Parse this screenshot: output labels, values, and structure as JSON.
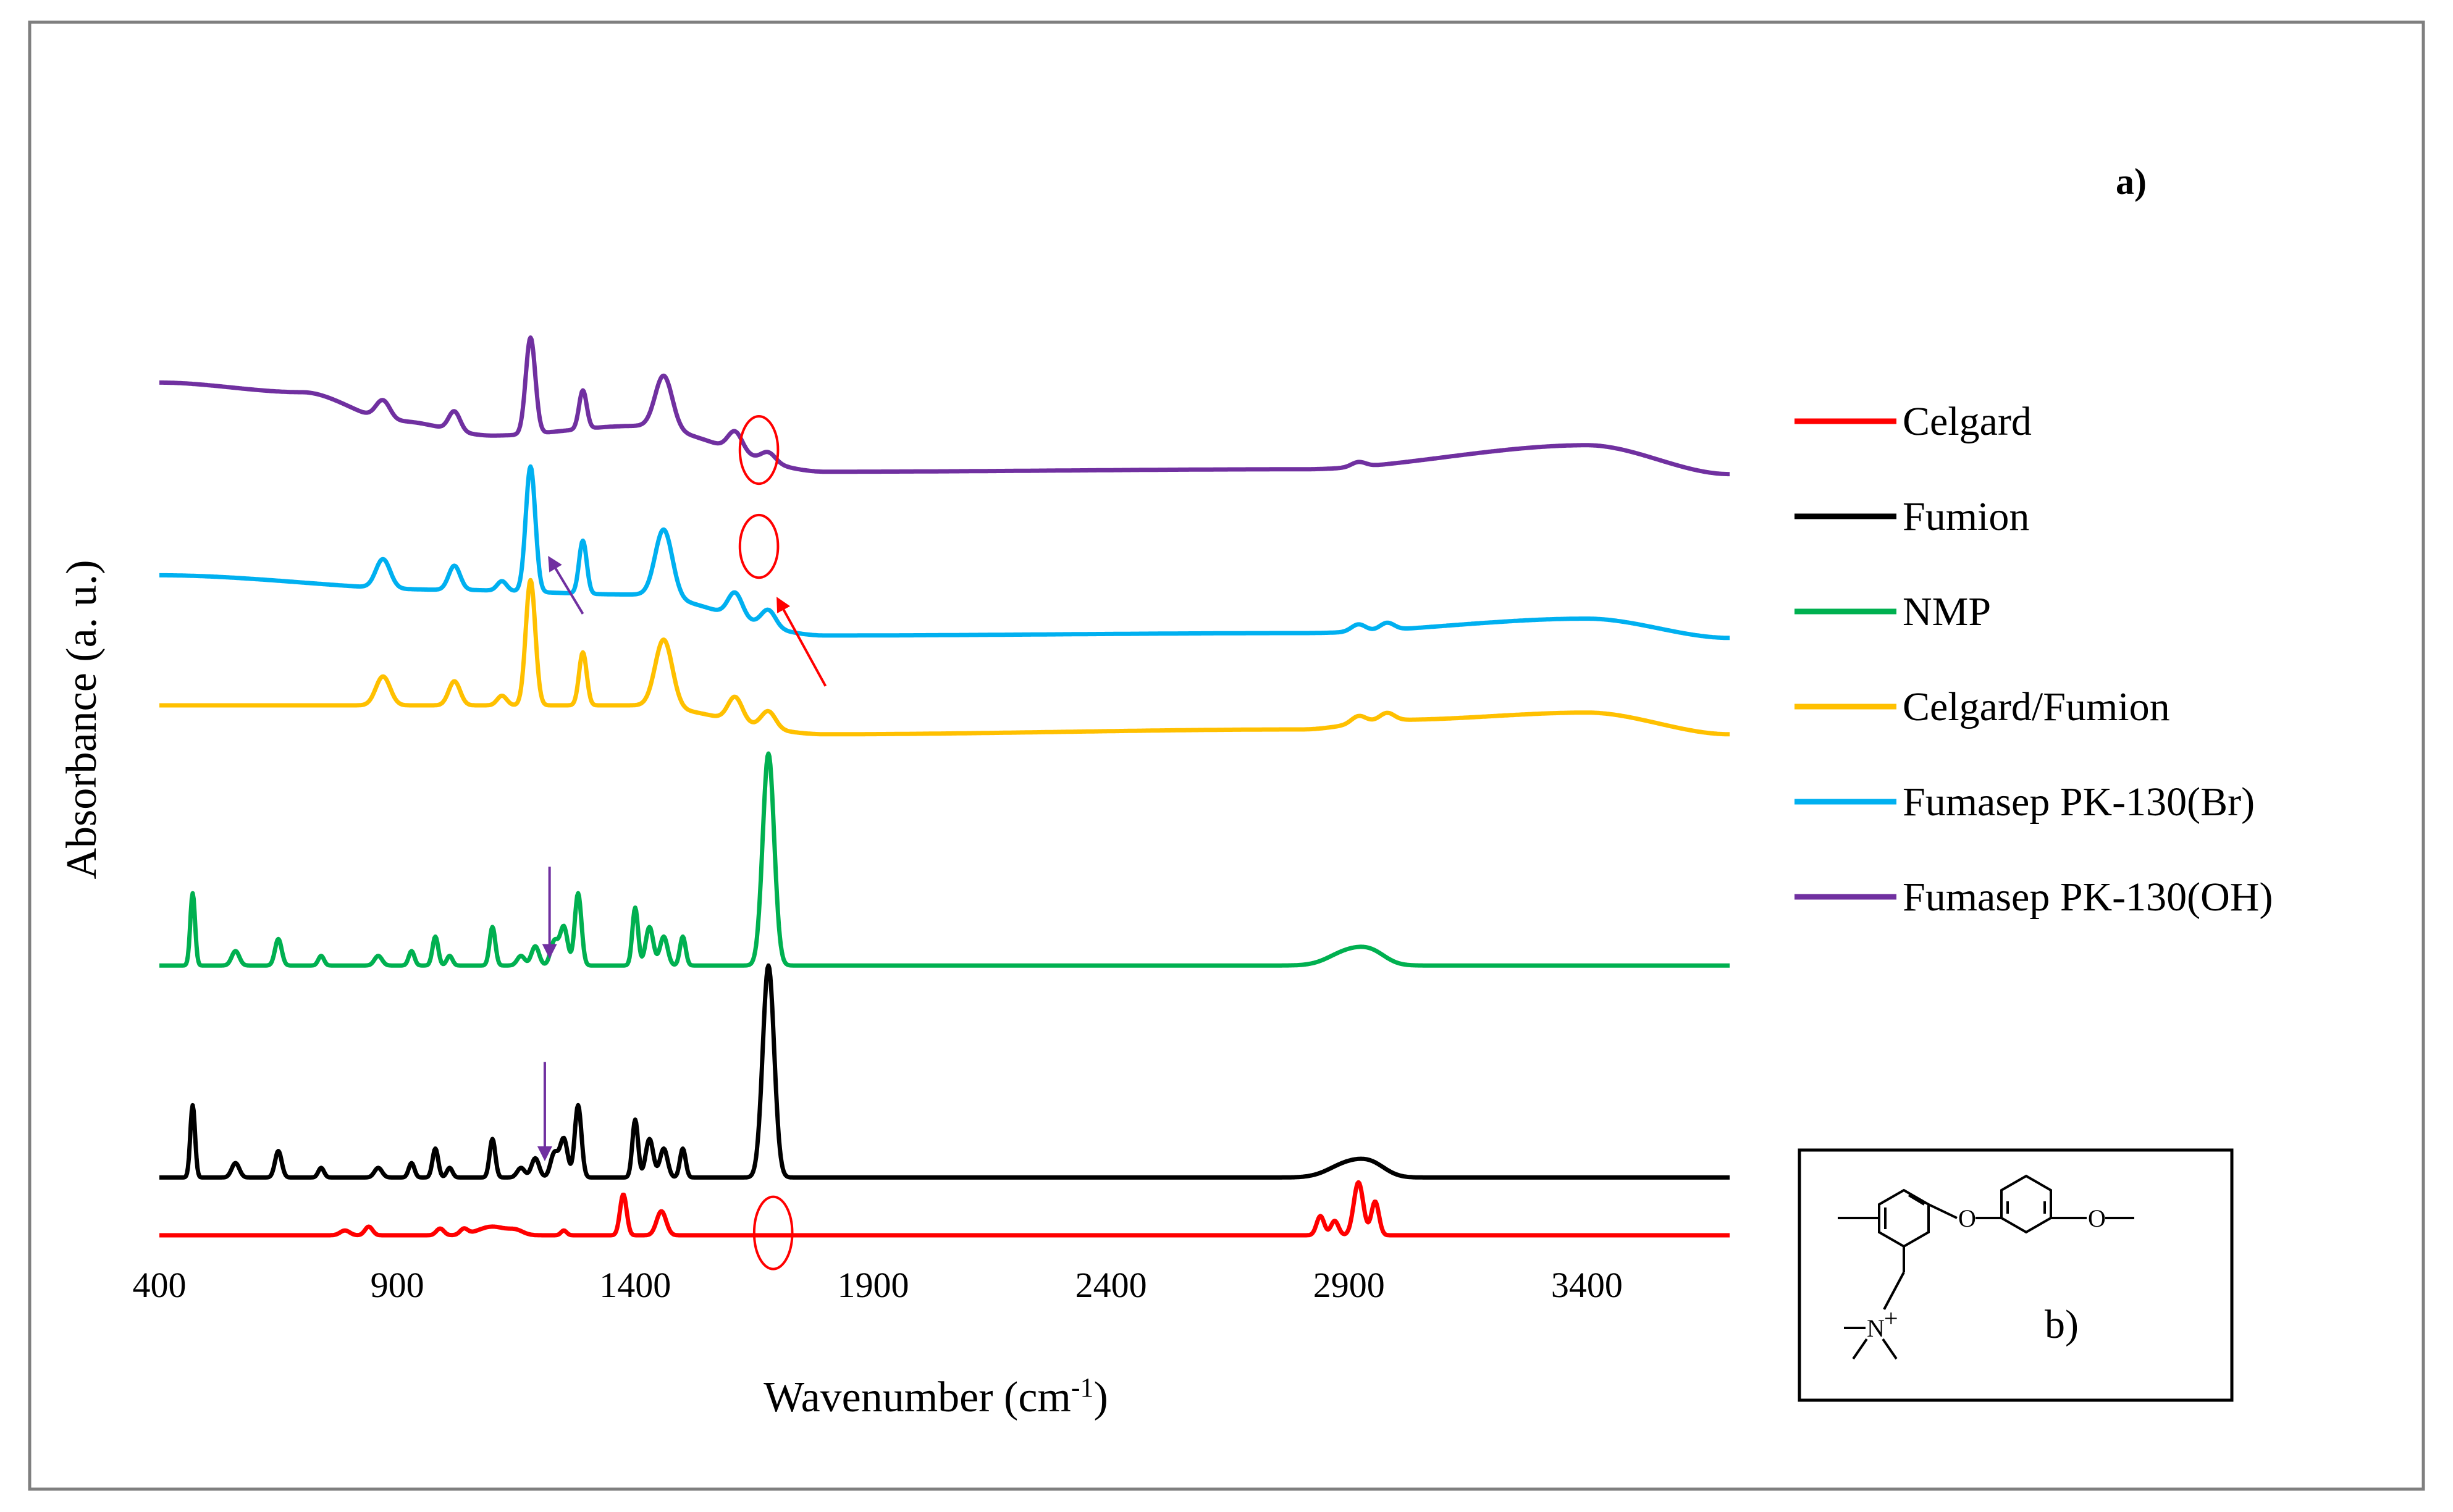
{
  "chart_data": {
    "type": "line",
    "panel_label": "a)",
    "xlabel": "Wavenumber (cm",
    "xlabel_sup": "-1",
    "xlabel_end": ")",
    "ylabel": "Absorbance (a. u.)",
    "xlim": [
      400,
      3700
    ],
    "x_ticks": [
      400,
      900,
      1400,
      1900,
      2400,
      2900,
      3400
    ],
    "legend_position": "right",
    "series": [
      {
        "name": "Celgard",
        "color": "#ff0000",
        "offset": 0.0,
        "baseline": [
          [
            400,
            0
          ],
          [
            3700,
            0
          ]
        ],
        "peaks": [
          [
            790,
            0.01,
            10
          ],
          [
            840,
            0.018,
            8
          ],
          [
            990,
            0.014,
            8
          ],
          [
            1040,
            0.012,
            8
          ],
          [
            1100,
            0.018,
            30
          ],
          [
            1150,
            0.008,
            15
          ],
          [
            1250,
            0.01,
            6
          ],
          [
            1375,
            0.085,
            7
          ],
          [
            1455,
            0.05,
            10
          ],
          [
            2840,
            0.04,
            8
          ],
          [
            2870,
            0.03,
            8
          ],
          [
            2920,
            0.11,
            10
          ],
          [
            2955,
            0.07,
            8
          ]
        ]
      },
      {
        "name": "Fumion",
        "color": "#000000",
        "offset": 0.12,
        "baseline": [
          [
            400,
            0
          ],
          [
            3700,
            0
          ]
        ],
        "peaks": [
          [
            470,
            0.15,
            5
          ],
          [
            560,
            0.03,
            8
          ],
          [
            650,
            0.055,
            7
          ],
          [
            740,
            0.02,
            6
          ],
          [
            860,
            0.02,
            8
          ],
          [
            930,
            0.03,
            6
          ],
          [
            980,
            0.06,
            6
          ],
          [
            1010,
            0.02,
            6
          ],
          [
            1100,
            0.08,
            6
          ],
          [
            1160,
            0.02,
            8
          ],
          [
            1190,
            0.04,
            8
          ],
          [
            1230,
            0.05,
            8
          ],
          [
            1250,
            0.08,
            8
          ],
          [
            1280,
            0.15,
            7
          ],
          [
            1400,
            0.12,
            6
          ],
          [
            1430,
            0.08,
            8
          ],
          [
            1460,
            0.06,
            8
          ],
          [
            1500,
            0.06,
            6
          ],
          [
            1680,
            0.44,
            12
          ],
          [
            2900,
            0.03,
            40
          ],
          [
            2950,
            0.02,
            30
          ]
        ]
      },
      {
        "name": "NMP",
        "color": "#00b050",
        "offset": 0.56,
        "baseline": [
          [
            400,
            0
          ],
          [
            3700,
            0
          ]
        ],
        "peaks": [
          [
            470,
            0.15,
            5
          ],
          [
            560,
            0.03,
            8
          ],
          [
            650,
            0.055,
            7
          ],
          [
            740,
            0.02,
            6
          ],
          [
            860,
            0.02,
            8
          ],
          [
            930,
            0.03,
            6
          ],
          [
            980,
            0.06,
            6
          ],
          [
            1010,
            0.02,
            6
          ],
          [
            1100,
            0.08,
            6
          ],
          [
            1160,
            0.02,
            8
          ],
          [
            1190,
            0.04,
            8
          ],
          [
            1230,
            0.05,
            8
          ],
          [
            1250,
            0.08,
            8
          ],
          [
            1280,
            0.15,
            7
          ],
          [
            1400,
            0.12,
            6
          ],
          [
            1430,
            0.08,
            8
          ],
          [
            1460,
            0.06,
            8
          ],
          [
            1500,
            0.06,
            6
          ],
          [
            1680,
            0.44,
            12
          ],
          [
            2900,
            0.03,
            40
          ],
          [
            2950,
            0.02,
            30
          ]
        ]
      },
      {
        "name": "Celgard/Fumion",
        "color": "#ffc000",
        "offset": 1.04,
        "baseline": [
          [
            400,
            0.06
          ],
          [
            1400,
            0.06
          ],
          [
            1800,
            0
          ],
          [
            2800,
            0.01
          ],
          [
            3000,
            0.03
          ],
          [
            3400,
            0.045
          ],
          [
            3700,
            0
          ]
        ],
        "peaks": [
          [
            870,
            0.06,
            15
          ],
          [
            1020,
            0.05,
            12
          ],
          [
            1120,
            0.02,
            10
          ],
          [
            1180,
            0.26,
            10
          ],
          [
            1290,
            0.11,
            8
          ],
          [
            1460,
            0.14,
            18
          ],
          [
            1610,
            0.05,
            15
          ],
          [
            1680,
            0.035,
            15
          ],
          [
            2920,
            0.015,
            15
          ],
          [
            2980,
            0.015,
            15
          ]
        ]
      },
      {
        "name": "Fumasep PK-130(Br)",
        "color": "#00b0f0",
        "offset": 1.24,
        "baseline": [
          [
            400,
            0.13
          ],
          [
            1000,
            0.1
          ],
          [
            1400,
            0.09
          ],
          [
            1800,
            0.005
          ],
          [
            2800,
            0.01
          ],
          [
            3400,
            0.04
          ],
          [
            3700,
            0
          ]
        ],
        "peaks": [
          [
            870,
            0.06,
            15
          ],
          [
            1020,
            0.05,
            12
          ],
          [
            1120,
            0.02,
            10
          ],
          [
            1180,
            0.26,
            10
          ],
          [
            1290,
            0.11,
            8
          ],
          [
            1460,
            0.14,
            18
          ],
          [
            1610,
            0.05,
            15
          ],
          [
            1680,
            0.035,
            15
          ],
          [
            2920,
            0.015,
            15
          ],
          [
            2980,
            0.015,
            15
          ]
        ]
      },
      {
        "name": "Fumasep PK-130(OH)",
        "color": "#7030a0",
        "offset": 1.58,
        "baseline": [
          [
            400,
            0.19
          ],
          [
            700,
            0.17
          ],
          [
            900,
            0.11
          ],
          [
            1100,
            0.08
          ],
          [
            1400,
            0.1
          ],
          [
            1800,
            0.005
          ],
          [
            2800,
            0.01
          ],
          [
            3400,
            0.06
          ],
          [
            3700,
            0
          ]
        ],
        "peaks": [
          [
            870,
            0.04,
            15
          ],
          [
            1020,
            0.04,
            12
          ],
          [
            1180,
            0.2,
            10
          ],
          [
            1290,
            0.08,
            8
          ],
          [
            1460,
            0.11,
            18
          ],
          [
            1610,
            0.04,
            15
          ],
          [
            1680,
            0.02,
            15
          ],
          [
            2920,
            0.01,
            15
          ]
        ]
      }
    ],
    "annotations": {
      "arrows": [
        {
          "color": "#7030a0",
          "from": [
            1290,
            1.29
          ],
          "to": [
            1220,
            1.405
          ]
        },
        {
          "color": "#ff0000",
          "from": [
            1800,
            1.14
          ],
          "to": [
            1700,
            1.32
          ]
        },
        {
          "color": "#7030a0",
          "from": [
            1220,
            0.765
          ],
          "to": [
            1220,
            0.58
          ]
        },
        {
          "color": "#7030a0",
          "from": [
            1210,
            0.36
          ],
          "to": [
            1210,
            0.16
          ]
        }
      ],
      "circles": [
        {
          "color": "#ff0000",
          "center": [
            1660,
            1.63
          ],
          "radius": [
            40,
            0.07
          ]
        },
        {
          "color": "#ff0000",
          "center": [
            1660,
            1.43
          ],
          "radius": [
            40,
            0.065
          ]
        },
        {
          "color": "#ff0000",
          "center": [
            1690,
            0.005
          ],
          "radius": [
            40,
            0.075
          ]
        }
      ]
    },
    "inset": {
      "label": "b)",
      "atoms": {
        "ether_oxygen": "O",
        "methoxy_oxygen": "O",
        "nitrogen": "N",
        "charge": "+"
      }
    }
  }
}
